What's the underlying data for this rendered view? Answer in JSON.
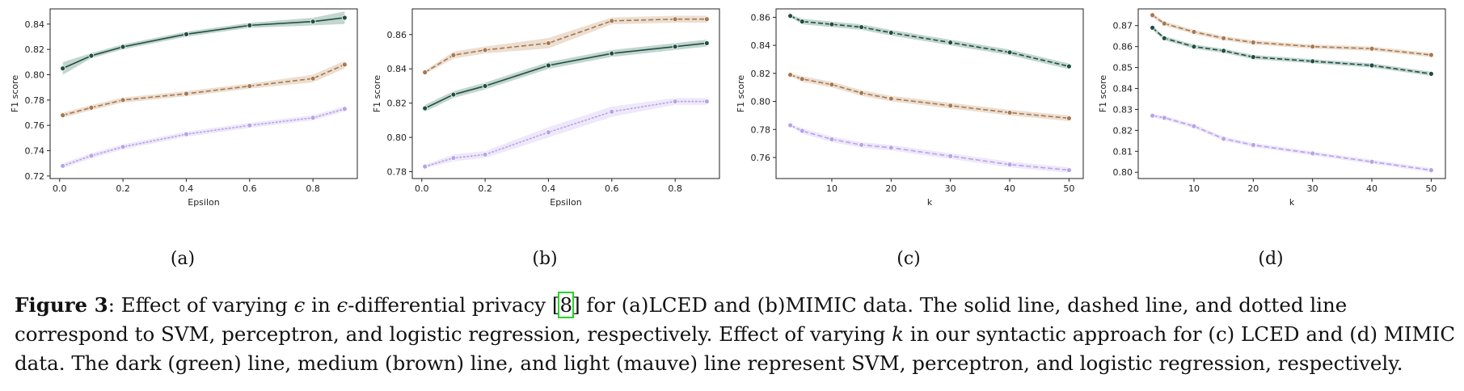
{
  "colors": {
    "svm": "#1f4e43",
    "perceptron": "#a8784f",
    "logistic": "#b7a3e8",
    "svm_band": "#8fb3a8",
    "perceptron_band": "#dcc3aa",
    "logistic_band": "#e0d5f6"
  },
  "chart_data": [
    {
      "type": "line",
      "panel_label": "(a)",
      "xlabel": "Epsilon",
      "ylabel": "F1 score",
      "xlim": [
        -0.03,
        0.94
      ],
      "ylim": [
        0.718,
        0.852
      ],
      "xticks": [
        0.0,
        0.2,
        0.4,
        0.6,
        0.8
      ],
      "xtick_labels": [
        "0.0",
        "0.2",
        "0.4",
        "0.6",
        "0.8"
      ],
      "yticks": [
        0.72,
        0.74,
        0.76,
        0.78,
        0.8,
        0.82,
        0.84
      ],
      "ytick_labels": [
        "0.72",
        "0.74",
        "0.76",
        "0.78",
        "0.80",
        "0.82",
        "0.84"
      ],
      "x": [
        0.01,
        0.1,
        0.2,
        0.4,
        0.6,
        0.8,
        0.9
      ],
      "series": [
        {
          "style": "solid",
          "values": [
            0.805,
            0.815,
            0.822,
            0.832,
            0.839,
            0.842,
            0.845
          ],
          "band": [
            0.005,
            0.002,
            0.002,
            0.002,
            0.002,
            0.003,
            0.005
          ]
        },
        {
          "style": "dashed",
          "values": [
            0.768,
            0.774,
            0.78,
            0.785,
            0.791,
            0.797,
            0.808
          ],
          "band": [
            0.002,
            0.002,
            0.002,
            0.002,
            0.002,
            0.003,
            0.003
          ]
        },
        {
          "style": "dotted",
          "values": [
            0.728,
            0.736,
            0.743,
            0.753,
            0.76,
            0.766,
            0.773
          ],
          "band": [
            0.002,
            0.002,
            0.002,
            0.002,
            0.002,
            0.002,
            0.002
          ]
        }
      ]
    },
    {
      "type": "line",
      "panel_label": "(b)",
      "xlabel": "Epsilon",
      "ylabel": "F1 score",
      "xlim": [
        -0.03,
        0.94
      ],
      "ylim": [
        0.776,
        0.875
      ],
      "xticks": [
        0.0,
        0.2,
        0.4,
        0.6,
        0.8
      ],
      "xtick_labels": [
        "0.0",
        "0.2",
        "0.4",
        "0.6",
        "0.8"
      ],
      "yticks": [
        0.78,
        0.8,
        0.82,
        0.84,
        0.86
      ],
      "ytick_labels": [
        "0.78",
        "0.80",
        "0.82",
        "0.84",
        "0.86"
      ],
      "x": [
        0.01,
        0.1,
        0.2,
        0.4,
        0.6,
        0.8,
        0.9
      ],
      "series": [
        {
          "style": "solid",
          "values": [
            0.817,
            0.825,
            0.83,
            0.842,
            0.849,
            0.853,
            0.855
          ],
          "band": [
            0.002,
            0.002,
            0.002,
            0.002,
            0.002,
            0.002,
            0.002
          ]
        },
        {
          "style": "dashed",
          "values": [
            0.838,
            0.848,
            0.851,
            0.855,
            0.868,
            0.869,
            0.869
          ],
          "band": [
            0.001,
            0.002,
            0.002,
            0.003,
            0.002,
            0.002,
            0.002
          ]
        },
        {
          "style": "dotted",
          "values": [
            0.783,
            0.788,
            0.79,
            0.803,
            0.815,
            0.821,
            0.821
          ],
          "band": [
            0.001,
            0.002,
            0.002,
            0.003,
            0.003,
            0.002,
            0.002
          ]
        }
      ]
    },
    {
      "type": "line",
      "panel_label": "(c)",
      "xlabel": "k",
      "ylabel": "F1 score",
      "xlim": [
        0.6,
        52.4
      ],
      "ylim": [
        0.745,
        0.866
      ],
      "xticks": [
        10,
        20,
        30,
        40,
        50
      ],
      "xtick_labels": [
        "10",
        "20",
        "30",
        "40",
        "50"
      ],
      "yticks": [
        0.76,
        0.78,
        0.8,
        0.82,
        0.84,
        0.86
      ],
      "ytick_labels": [
        "0.76",
        "0.78",
        "0.80",
        "0.82",
        "0.84",
        "0.86"
      ],
      "x": [
        3,
        5,
        10,
        15,
        20,
        30,
        40,
        50
      ],
      "series": [
        {
          "style": "dashed",
          "role": "svm",
          "values": [
            0.861,
            0.857,
            0.855,
            0.853,
            0.849,
            0.842,
            0.835,
            0.825
          ],
          "band": [
            0.001,
            0.002,
            0.002,
            0.002,
            0.002,
            0.002,
            0.002,
            0.002
          ]
        },
        {
          "style": "dashed",
          "role": "perceptron",
          "values": [
            0.819,
            0.816,
            0.812,
            0.806,
            0.802,
            0.797,
            0.792,
            0.788
          ],
          "band": [
            0.001,
            0.002,
            0.002,
            0.002,
            0.002,
            0.002,
            0.002,
            0.002
          ]
        },
        {
          "style": "dashed",
          "role": "logistic",
          "values": [
            0.783,
            0.779,
            0.773,
            0.769,
            0.767,
            0.761,
            0.755,
            0.751
          ],
          "band": [
            0.001,
            0.002,
            0.002,
            0.002,
            0.002,
            0.002,
            0.002,
            0.002
          ]
        }
      ]
    },
    {
      "type": "line",
      "panel_label": "(d)",
      "xlabel": "k",
      "ylabel": "F1 score",
      "xlim": [
        0.6,
        52.4
      ],
      "ylim": [
        0.797,
        0.878
      ],
      "xticks": [
        10,
        20,
        30,
        40,
        50
      ],
      "xtick_labels": [
        "10",
        "20",
        "30",
        "40",
        "50"
      ],
      "yticks": [
        0.8,
        0.81,
        0.82,
        0.83,
        0.84,
        0.85,
        0.86,
        0.87
      ],
      "ytick_labels": [
        "0.80",
        "0.81",
        "0.82",
        "0.83",
        "0.84",
        "0.85",
        "0.86",
        "0.87"
      ],
      "x": [
        3,
        5,
        10,
        15,
        20,
        30,
        40,
        50
      ],
      "series": [
        {
          "style": "dashed",
          "role": "svm",
          "values": [
            0.869,
            0.864,
            0.86,
            0.858,
            0.855,
            0.853,
            0.851,
            0.847
          ],
          "band": [
            0.001,
            0.001,
            0.001,
            0.001,
            0.001,
            0.001,
            0.001,
            0.001
          ]
        },
        {
          "style": "dashed",
          "role": "perceptron",
          "values": [
            0.875,
            0.871,
            0.867,
            0.864,
            0.862,
            0.86,
            0.859,
            0.856
          ],
          "band": [
            0.001,
            0.001,
            0.001,
            0.001,
            0.001,
            0.001,
            0.001,
            0.001
          ]
        },
        {
          "style": "dashed",
          "role": "logistic",
          "values": [
            0.827,
            0.826,
            0.822,
            0.816,
            0.813,
            0.809,
            0.805,
            0.801
          ],
          "band": [
            0.001,
            0.001,
            0.001,
            0.001,
            0.001,
            0.001,
            0.001,
            0.001
          ]
        }
      ]
    }
  ],
  "caption": {
    "label": "Figure 3",
    "p1": ": Effect of varying ",
    "eps1": "ϵ",
    "p2": " in ",
    "eps2": "ϵ",
    "p3": "-differential privacy [",
    "cite": "8",
    "p4": "] for (a)LCED and (b)MIMIC data. The solid line, dashed line, and dotted line correspond to SVM, perceptron, and logistic regression, respectively. Effect of varying ",
    "k": "k",
    "p5": " in our syntactic approach for (c) LCED and (d) MIMIC data. The dark (green) line, medium (brown) line, and light (mauve) line represent SVM, perceptron, and logistic regression, respectively."
  }
}
